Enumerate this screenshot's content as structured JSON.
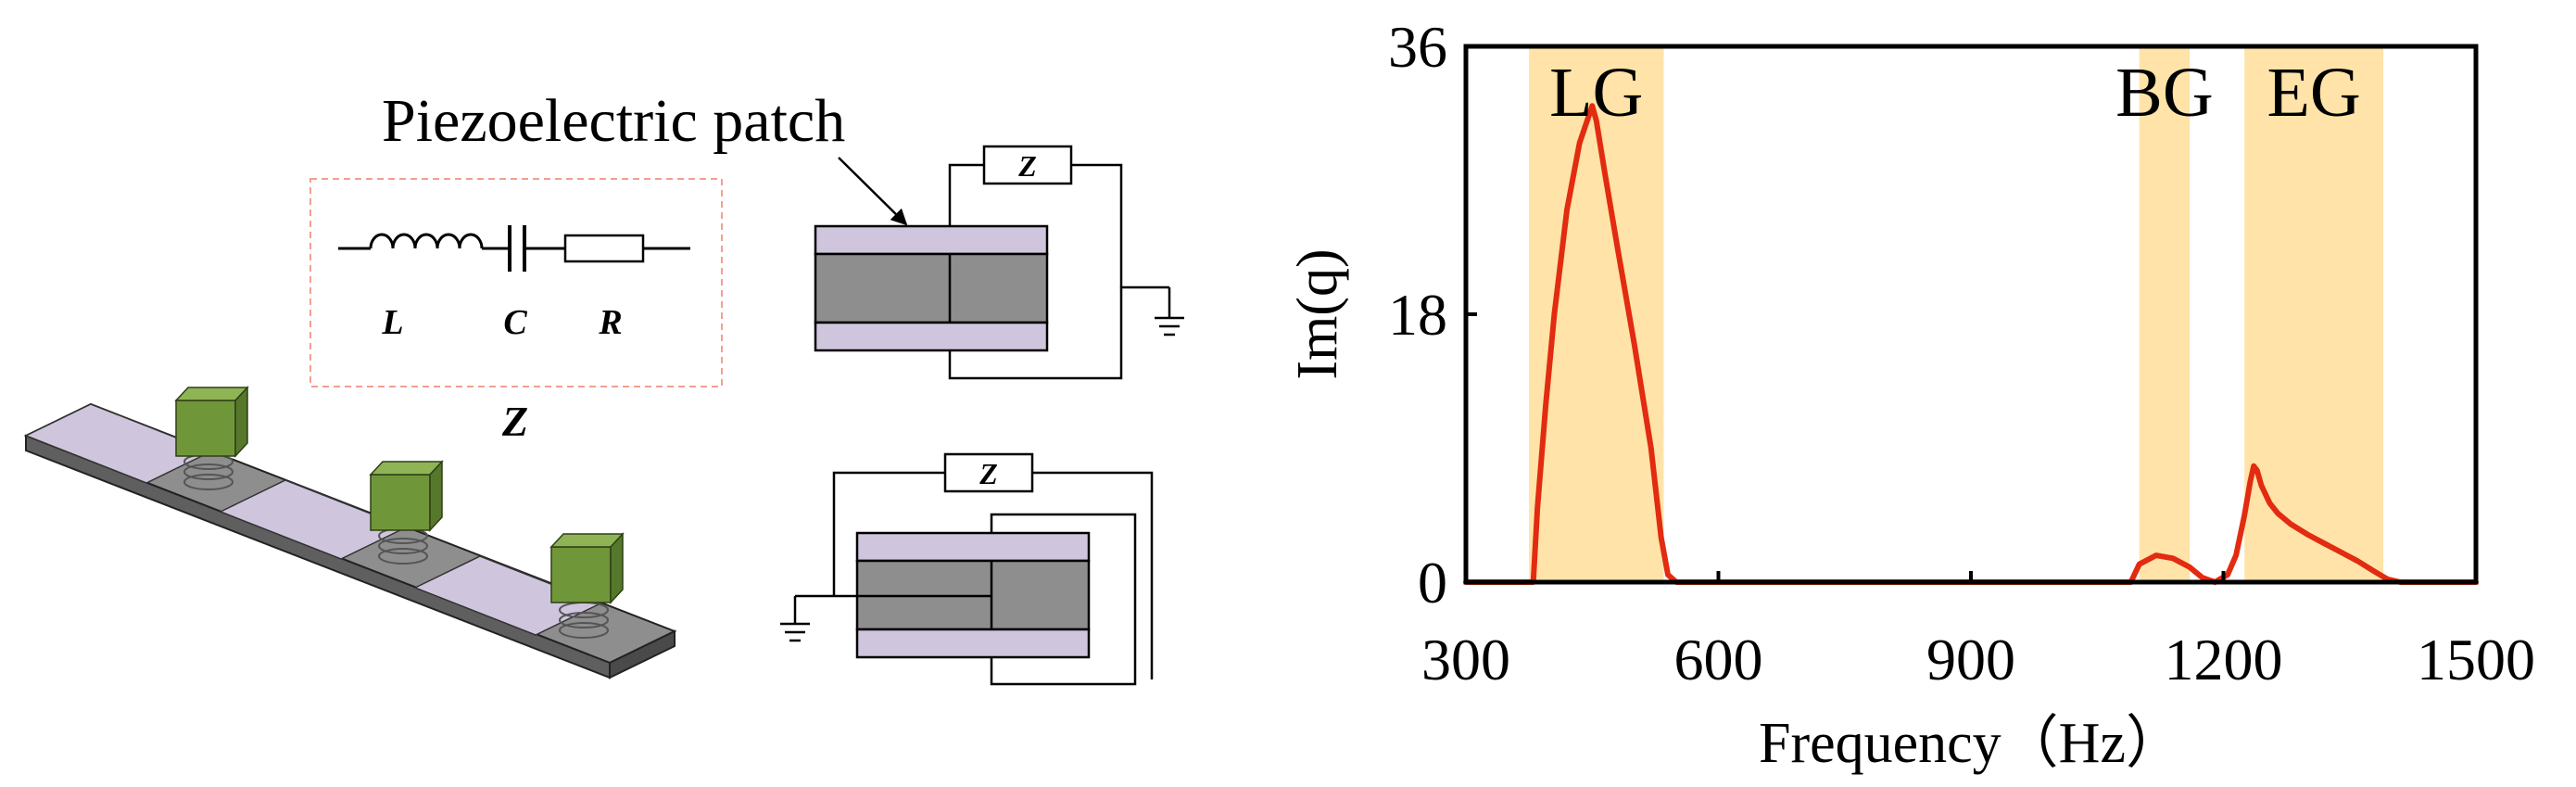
{
  "schematic": {
    "patch_label": "Piezoelectric patch",
    "circuit_labels": {
      "inductor": "L",
      "capacitor": "C",
      "resistor": "R"
    },
    "impedance_label": "Z",
    "impedance_box_label": "Z"
  },
  "colors": {
    "patch": "#cfc6de",
    "beam": "#8e8e8e",
    "beam_dark": "#5f5f5f",
    "mass": "#70963a",
    "band": "#ffe3a8",
    "curve": "#e22b10",
    "dashed_box": "#f2a08f"
  },
  "chart_data": {
    "type": "line",
    "title": "",
    "xlabel": "Frequency（Hz）",
    "ylabel": "Im(q)",
    "xlim": [
      300,
      1500
    ],
    "ylim": [
      0,
      36
    ],
    "xticks": [
      300,
      600,
      900,
      1200,
      1500
    ],
    "yticks": [
      0,
      18,
      36
    ],
    "grid": false,
    "bands": [
      {
        "label": "LG",
        "x0": 375,
        "x1": 535
      },
      {
        "label": "BG",
        "x0": 1100,
        "x1": 1160
      },
      {
        "label": "EG",
        "x0": 1225,
        "x1": 1390
      }
    ],
    "series": [
      {
        "color": "#e22b10",
        "x": [
          300,
          380,
          385,
          395,
          405,
          420,
          435,
          450,
          455,
          465,
          480,
          500,
          520,
          532,
          540,
          550,
          1090,
          1100,
          1120,
          1140,
          1160,
          1175,
          1190,
          1205,
          1215,
          1225,
          1232,
          1236,
          1240,
          1245,
          1255,
          1265,
          1280,
          1300,
          1320,
          1340,
          1360,
          1380,
          1395,
          1410,
          1500
        ],
        "y": [
          0,
          0,
          5,
          12,
          18,
          25,
          29.5,
          32,
          31,
          27.5,
          22.5,
          16,
          9,
          3,
          0.5,
          0,
          0,
          1.2,
          1.8,
          1.6,
          1.0,
          0.3,
          0,
          0.5,
          1.8,
          4.5,
          6.8,
          7.8,
          7.5,
          6.5,
          5.3,
          4.6,
          3.9,
          3.2,
          2.6,
          2.0,
          1.4,
          0.7,
          0.2,
          0,
          0
        ]
      }
    ]
  }
}
